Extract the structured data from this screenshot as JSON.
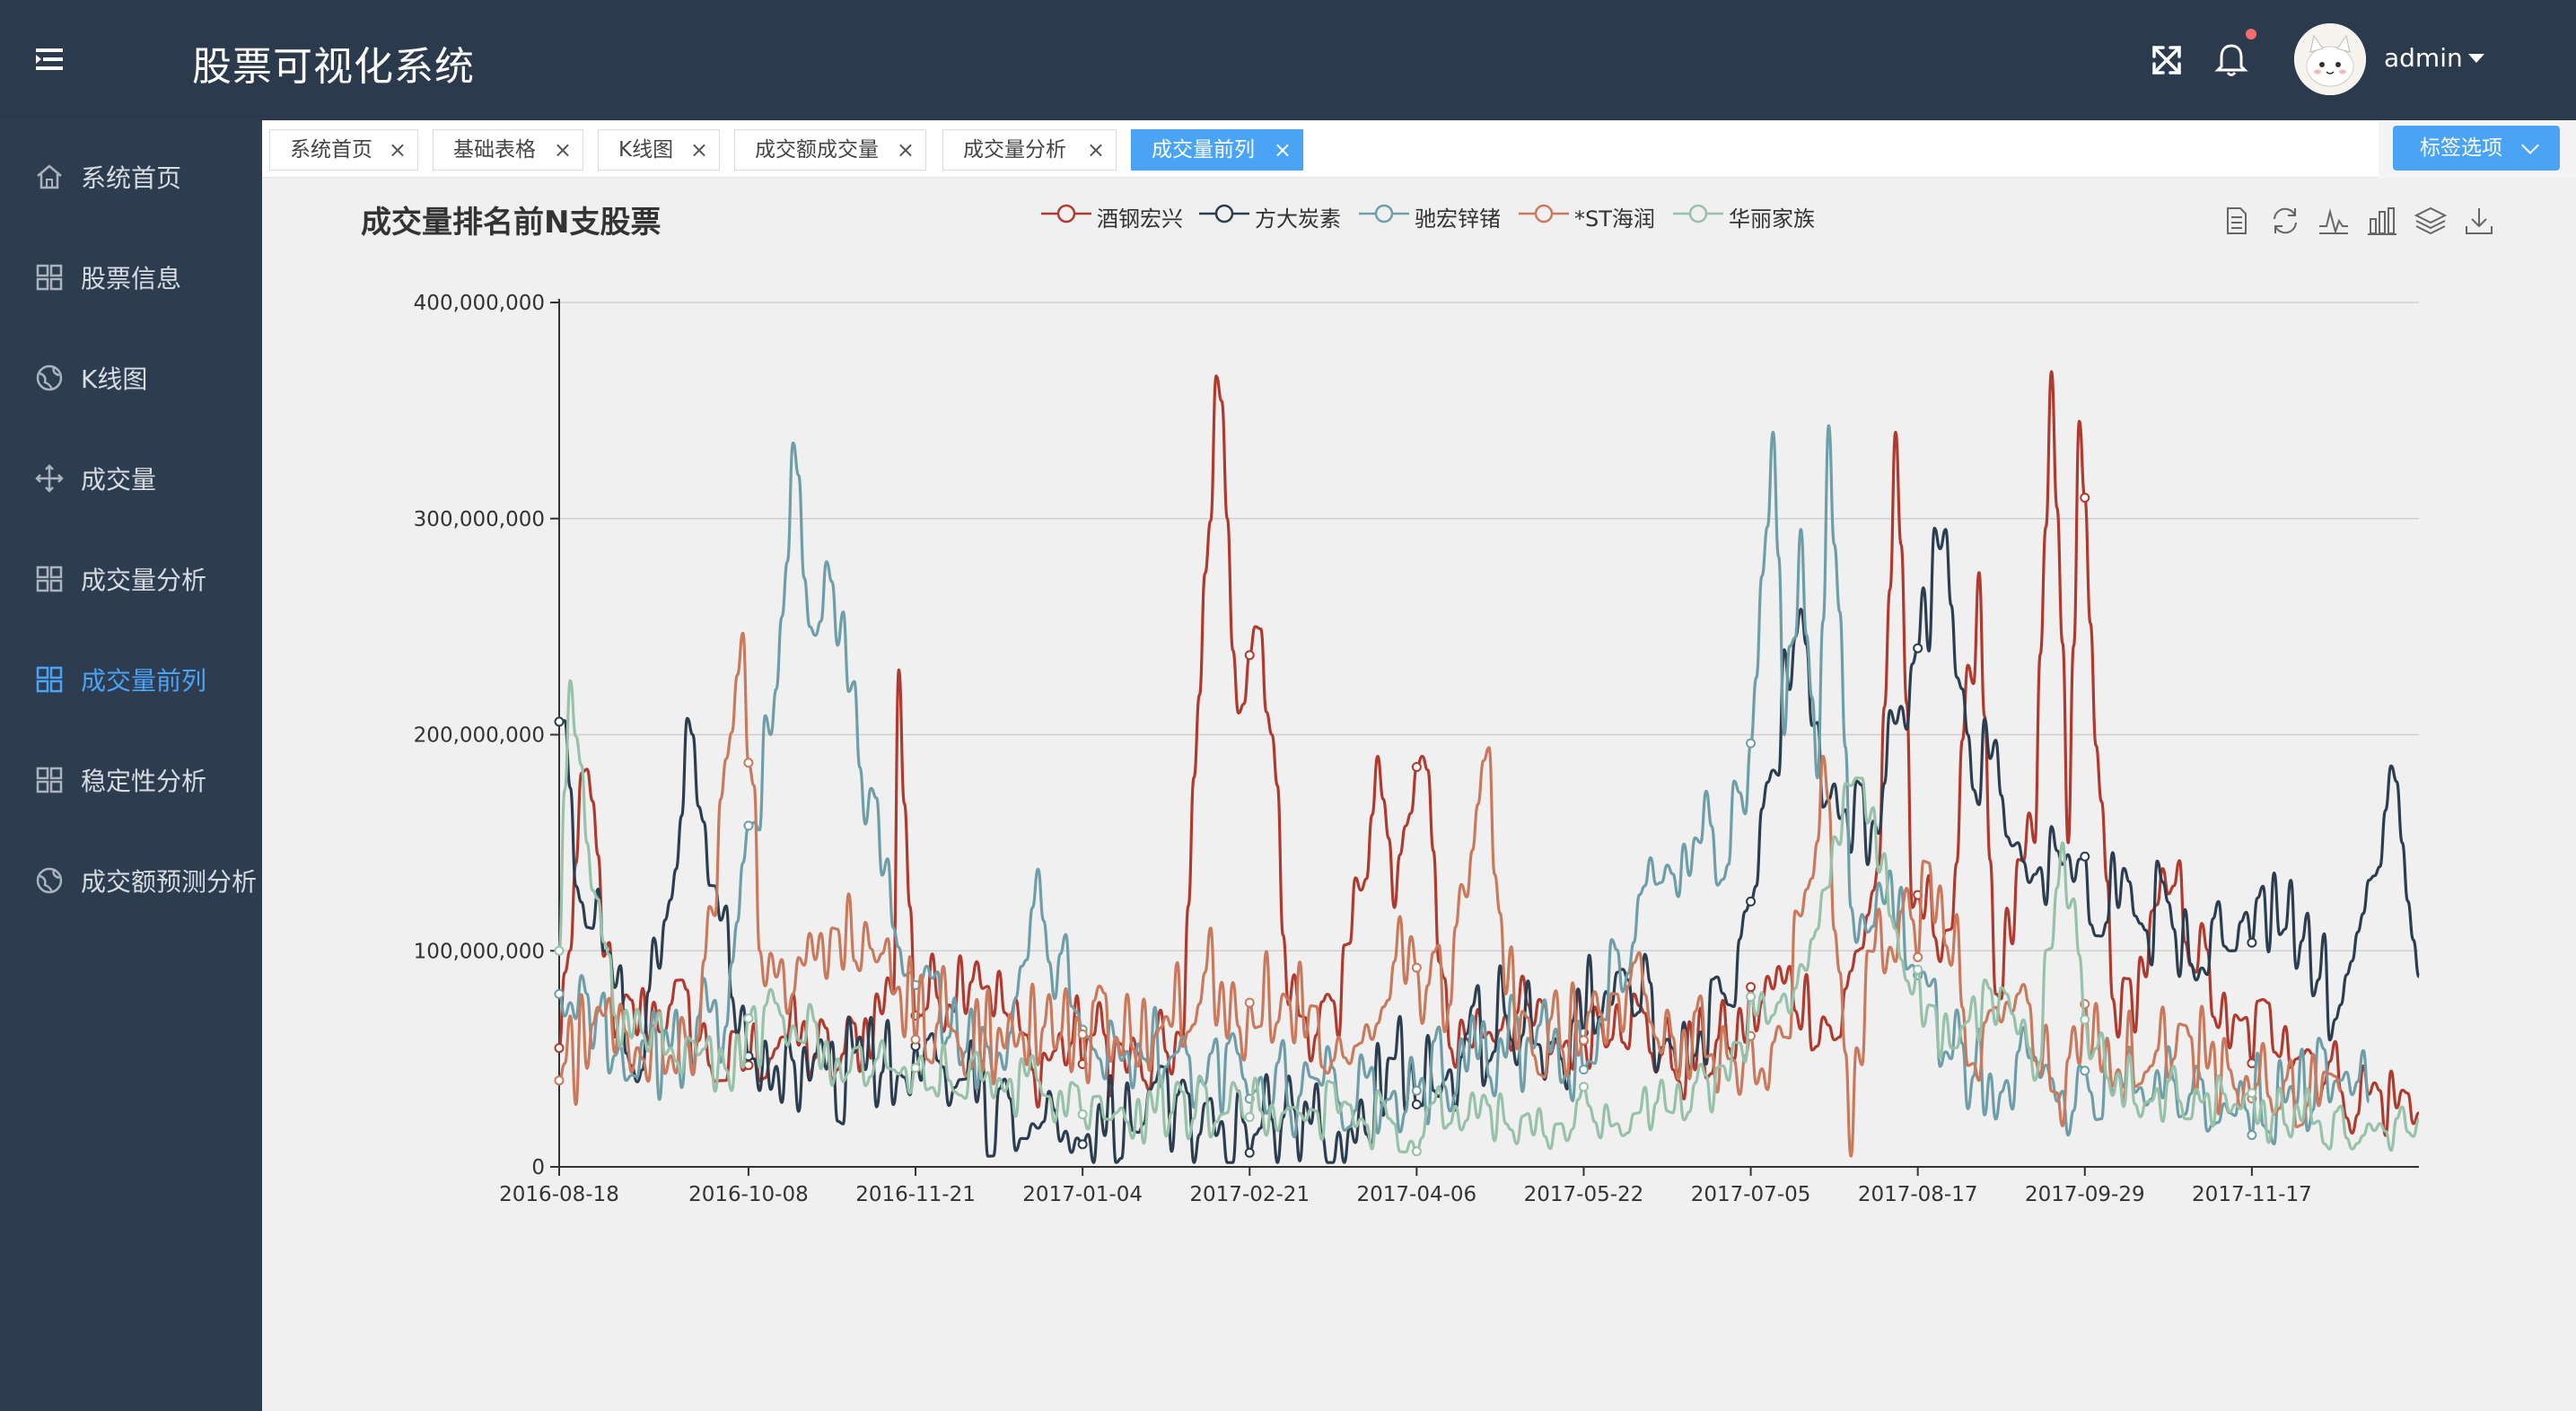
{
  "header": {
    "title": "股票可视化系统",
    "username": "admin",
    "icons": [
      "menu-toggle-icon",
      "fullscreen-icon",
      "bell-icon",
      "caret-down-icon"
    ],
    "notification_dot_color": "#f56c6c"
  },
  "sidebar": {
    "items": [
      {
        "label": "系统首页",
        "icon": "home-icon",
        "active": false
      },
      {
        "label": "股票信息",
        "icon": "grid-icon",
        "active": false
      },
      {
        "label": "K线图",
        "icon": "globe-icon",
        "active": false
      },
      {
        "label": "成交量",
        "icon": "move-icon",
        "active": false
      },
      {
        "label": "成交量分析",
        "icon": "grid-icon",
        "active": false
      },
      {
        "label": "成交量前列",
        "icon": "grid-icon",
        "active": true
      },
      {
        "label": "稳定性分析",
        "icon": "grid-icon",
        "active": false
      },
      {
        "label": "成交额预测分析",
        "icon": "globe-icon",
        "active": false
      }
    ]
  },
  "tags": {
    "items": [
      {
        "label": "系统首页",
        "active": false
      },
      {
        "label": "基础表格",
        "active": false
      },
      {
        "label": "K线图",
        "active": false
      },
      {
        "label": "成交额成交量",
        "active": false
      },
      {
        "label": "成交量分析",
        "active": false
      },
      {
        "label": "成交量前列",
        "active": true
      }
    ],
    "options_label": "标签选项",
    "close_glyph": "×"
  },
  "colors": {
    "accent": "#4aa3f5",
    "header_bg": "#2b3a4d",
    "sidebar_bg": "#2e3c50"
  },
  "toolbox": [
    "data-view-icon",
    "restore-icon",
    "line-icon",
    "bar-icon",
    "stack-icon",
    "download-icon"
  ],
  "chart_data": {
    "type": "line",
    "title": "成交量排名前N支股票",
    "ylim": [
      0,
      400000000
    ],
    "y_ticks": [
      "0",
      "100,000,000",
      "200,000,000",
      "300,000,000",
      "400,000,000"
    ],
    "x_tick_labels": [
      "2016-08-18",
      "2016-10-08",
      "2016-11-21",
      "2017-01-04",
      "2017-02-21",
      "2017-04-06",
      "2017-05-22",
      "2017-07-05",
      "2017-08-17",
      "2017-09-29",
      "2017-11-17"
    ],
    "x_tick_index": [
      0,
      34,
      64,
      94,
      124,
      154,
      184,
      214,
      244,
      274,
      304
    ],
    "n_points": 335,
    "grid": true,
    "legend_position": "top-center",
    "series": [
      {
        "name": "酒钢宏兴",
        "color": "#b03a2e",
        "anchors": [
          [
            0,
            55000000
          ],
          [
            5,
            184000000
          ],
          [
            10,
            60000000
          ],
          [
            20,
            75000000
          ],
          [
            30,
            40000000
          ],
          [
            40,
            60000000
          ],
          [
            50,
            45000000
          ],
          [
            60,
            80000000
          ],
          [
            61,
            230000000
          ],
          [
            64,
            70000000
          ],
          [
            75,
            95000000
          ],
          [
            85,
            45000000
          ],
          [
            95,
            60000000
          ],
          [
            105,
            40000000
          ],
          [
            112,
            60000000
          ],
          [
            118,
            366000000
          ],
          [
            120,
            300000000
          ],
          [
            122,
            210000000
          ],
          [
            125,
            250000000
          ],
          [
            128,
            200000000
          ],
          [
            131,
            75000000
          ],
          [
            140,
            60000000
          ],
          [
            147,
            190000000
          ],
          [
            150,
            120000000
          ],
          [
            155,
            190000000
          ],
          [
            160,
            55000000
          ],
          [
            170,
            70000000
          ],
          [
            180,
            55000000
          ],
          [
            190,
            75000000
          ],
          [
            200,
            45000000
          ],
          [
            210,
            55000000
          ],
          [
            220,
            85000000
          ],
          [
            230,
            60000000
          ],
          [
            237,
            140000000
          ],
          [
            240,
            340000000
          ],
          [
            243,
            120000000
          ],
          [
            250,
            110000000
          ],
          [
            255,
            275000000
          ],
          [
            258,
            80000000
          ],
          [
            265,
            150000000
          ],
          [
            268,
            368000000
          ],
          [
            271,
            150000000
          ],
          [
            273,
            345000000
          ],
          [
            276,
            195000000
          ],
          [
            280,
            60000000
          ],
          [
            290,
            130000000
          ],
          [
            300,
            55000000
          ],
          [
            310,
            65000000
          ],
          [
            320,
            35000000
          ],
          [
            334,
            25000000
          ]
        ],
        "amp": 22000000
      },
      {
        "name": "方大炭素",
        "color": "#2b3d4f",
        "anchors": [
          [
            0,
            206000000
          ],
          [
            3,
            130000000
          ],
          [
            8,
            100000000
          ],
          [
            15,
            45000000
          ],
          [
            24,
            200000000
          ],
          [
            28,
            130000000
          ],
          [
            35,
            50000000
          ],
          [
            45,
            40000000
          ],
          [
            55,
            45000000
          ],
          [
            65,
            40000000
          ],
          [
            75,
            30000000
          ],
          [
            85,
            20000000
          ],
          [
            95,
            15000000
          ],
          [
            105,
            20000000
          ],
          [
            115,
            15000000
          ],
          [
            125,
            15000000
          ],
          [
            135,
            20000000
          ],
          [
            145,
            15000000
          ],
          [
            150,
            50000000
          ],
          [
            160,
            45000000
          ],
          [
            170,
            70000000
          ],
          [
            180,
            50000000
          ],
          [
            190,
            90000000
          ],
          [
            200,
            55000000
          ],
          [
            210,
            75000000
          ],
          [
            215,
            130000000
          ],
          [
            222,
            245000000
          ],
          [
            228,
            170000000
          ],
          [
            236,
            160000000
          ],
          [
            244,
            240000000
          ],
          [
            249,
            295000000
          ],
          [
            253,
            200000000
          ],
          [
            262,
            150000000
          ],
          [
            270,
            140000000
          ],
          [
            280,
            120000000
          ],
          [
            290,
            110000000
          ],
          [
            300,
            100000000
          ],
          [
            310,
            110000000
          ],
          [
            320,
            75000000
          ],
          [
            328,
            165000000
          ],
          [
            331,
            150000000
          ],
          [
            334,
            88000000
          ]
        ],
        "amp": 26000000
      },
      {
        "name": "驰宏锌锗",
        "color": "#6e9ea8",
        "anchors": [
          [
            0,
            80000000
          ],
          [
            5,
            80000000
          ],
          [
            12,
            40000000
          ],
          [
            20,
            55000000
          ],
          [
            30,
            65000000
          ],
          [
            38,
            200000000
          ],
          [
            42,
            335000000
          ],
          [
            45,
            250000000
          ],
          [
            48,
            280000000
          ],
          [
            52,
            220000000
          ],
          [
            58,
            135000000
          ],
          [
            63,
            90000000
          ],
          [
            70,
            60000000
          ],
          [
            80,
            45000000
          ],
          [
            85,
            120000000
          ],
          [
            95,
            60000000
          ],
          [
            105,
            50000000
          ],
          [
            115,
            40000000
          ],
          [
            125,
            35000000
          ],
          [
            140,
            30000000
          ],
          [
            150,
            35000000
          ],
          [
            165,
            50000000
          ],
          [
            175,
            55000000
          ],
          [
            184,
            45000000
          ],
          [
            195,
            130000000
          ],
          [
            205,
            150000000
          ],
          [
            210,
            140000000
          ],
          [
            214,
            196000000
          ],
          [
            218,
            340000000
          ],
          [
            220,
            200000000
          ],
          [
            223,
            295000000
          ],
          [
            226,
            180000000
          ],
          [
            228,
            343000000
          ],
          [
            232,
            120000000
          ],
          [
            240,
            110000000
          ],
          [
            250,
            50000000
          ],
          [
            260,
            40000000
          ],
          [
            270,
            35000000
          ],
          [
            280,
            45000000
          ],
          [
            290,
            40000000
          ],
          [
            300,
            25000000
          ],
          [
            310,
            30000000
          ],
          [
            320,
            40000000
          ],
          [
            325,
            30000000
          ]
        ],
        "amp": 24000000
      },
      {
        "name": "*ST海润",
        "color": "#c97a5d",
        "anchors": [
          [
            0,
            40000000
          ],
          [
            8,
            70000000
          ],
          [
            15,
            50000000
          ],
          [
            25,
            60000000
          ],
          [
            33,
            247000000
          ],
          [
            36,
            100000000
          ],
          [
            42,
            80000000
          ],
          [
            50,
            110000000
          ],
          [
            60,
            80000000
          ],
          [
            70,
            65000000
          ],
          [
            80,
            55000000
          ],
          [
            90,
            60000000
          ],
          [
            100,
            60000000
          ],
          [
            110,
            65000000
          ],
          [
            116,
            90000000
          ],
          [
            122,
            65000000
          ],
          [
            130,
            80000000
          ],
          [
            140,
            60000000
          ],
          [
            150,
            95000000
          ],
          [
            160,
            75000000
          ],
          [
            167,
            194000000
          ],
          [
            170,
            80000000
          ],
          [
            180,
            55000000
          ],
          [
            190,
            80000000
          ],
          [
            200,
            60000000
          ],
          [
            210,
            50000000
          ],
          [
            220,
            60000000
          ],
          [
            227,
            190000000
          ],
          [
            230,
            90000000
          ],
          [
            232,
            5000000
          ],
          [
            235,
            100000000
          ],
          [
            240,
            95000000
          ],
          [
            248,
            130000000
          ],
          [
            255,
            40000000
          ],
          [
            262,
            80000000
          ],
          [
            268,
            35000000
          ],
          [
            275,
            50000000
          ],
          [
            280,
            45000000
          ],
          [
            290,
            50000000
          ],
          [
            300,
            45000000
          ],
          [
            310,
            40000000
          ],
          [
            320,
            35000000
          ]
        ],
        "amp": 25000000
      },
      {
        "name": "华丽家族",
        "color": "#97c1a9",
        "anchors": [
          [
            0,
            100000000
          ],
          [
            2,
            225000000
          ],
          [
            5,
            150000000
          ],
          [
            10,
            70000000
          ],
          [
            20,
            55000000
          ],
          [
            30,
            45000000
          ],
          [
            40,
            70000000
          ],
          [
            50,
            50000000
          ],
          [
            60,
            45000000
          ],
          [
            70,
            40000000
          ],
          [
            80,
            35000000
          ],
          [
            90,
            35000000
          ],
          [
            100,
            25000000
          ],
          [
            110,
            25000000
          ],
          [
            120,
            25000000
          ],
          [
            130,
            25000000
          ],
          [
            140,
            25000000
          ],
          [
            150,
            20000000
          ],
          [
            160,
            20000000
          ],
          [
            170,
            20000000
          ],
          [
            180,
            20000000
          ],
          [
            190,
            20000000
          ],
          [
            200,
            25000000
          ],
          [
            210,
            40000000
          ],
          [
            215,
            70000000
          ],
          [
            220,
            80000000
          ],
          [
            226,
            110000000
          ],
          [
            233,
            180000000
          ],
          [
            240,
            110000000
          ],
          [
            245,
            65000000
          ],
          [
            250,
            55000000
          ],
          [
            260,
            80000000
          ],
          [
            265,
            40000000
          ],
          [
            270,
            150000000
          ],
          [
            275,
            50000000
          ],
          [
            285,
            30000000
          ],
          [
            295,
            30000000
          ],
          [
            305,
            20000000
          ],
          [
            315,
            20000000
          ],
          [
            325,
            20000000
          ],
          [
            334,
            22000000
          ]
        ],
        "amp": 16000000
      }
    ]
  }
}
